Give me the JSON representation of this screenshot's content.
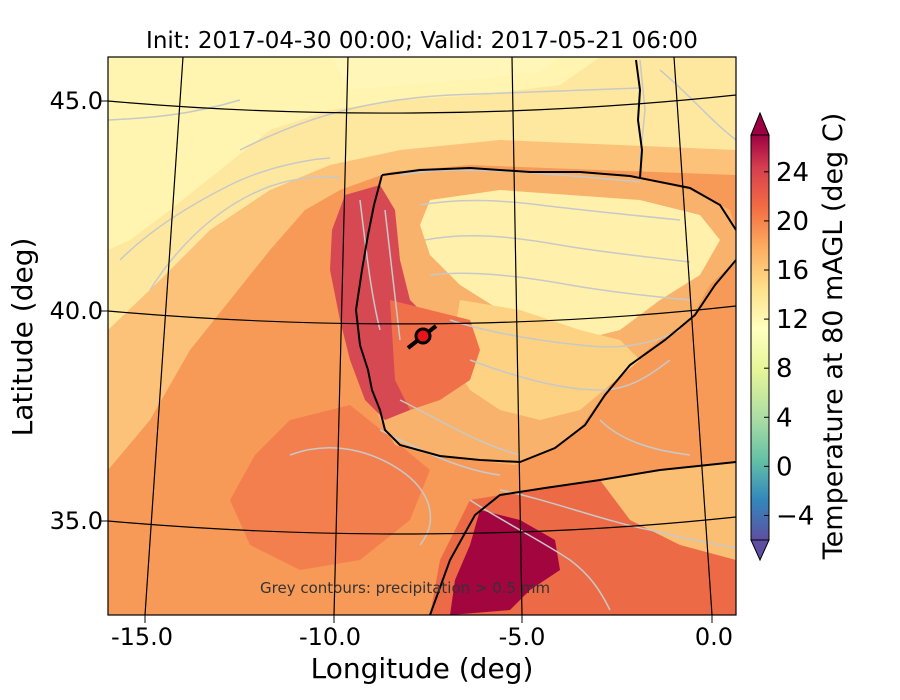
{
  "map": {
    "title": "Init: 2017-04-30 00:00; Valid: 2017-05-21 06:00",
    "xlabel": "Longitude (deg)",
    "ylabel": "Latitude (deg)",
    "lon_ticks": [
      "-15.0",
      "-10.0",
      "-5.0",
      "0.0"
    ],
    "lat_ticks": [
      "45.0",
      "40.0",
      "35.0"
    ],
    "annotation": "Grey contours: precipitation > 0.5 mm",
    "marker": {
      "lon": -7.6,
      "lat": 39.4,
      "color": "#e8141b"
    },
    "colors": {
      "ocean_warm": "#f79a58",
      "ocean_mid": "#fdc279",
      "ocean_cool": "#fee8a0",
      "cool_band": "#fff4b0",
      "land_hot": "#d7424a",
      "land_very_hot": "#a3053f",
      "precip_contour": "#c8c8c8",
      "coastline": "#000000",
      "graticule": "#000000"
    }
  },
  "colorbar": {
    "label": "Temperature at 80 mAGL (deg C)",
    "ticks": [
      "24",
      "20",
      "16",
      "12",
      "8",
      "4",
      "0",
      "−4"
    ],
    "tick_values": [
      24,
      20,
      16,
      12,
      8,
      4,
      0,
      -4
    ],
    "range": [
      -6,
      27
    ],
    "extend": "both",
    "colormap": "Spectral_r"
  }
}
